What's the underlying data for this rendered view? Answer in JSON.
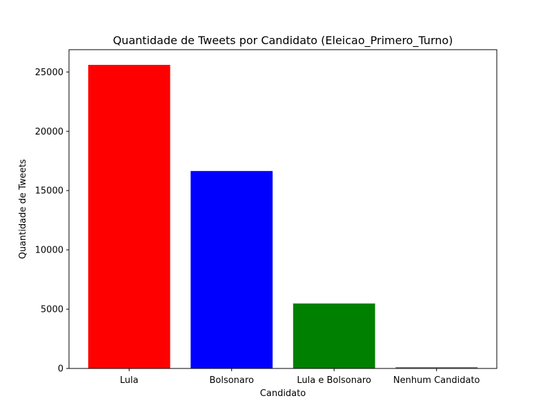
{
  "chart_data": {
    "type": "bar",
    "title": "Quantidade de Tweets por Candidato (Eleicao_Primero_Turno)",
    "xlabel": "Candidato",
    "ylabel": "Quantidade de Tweets",
    "categories": [
      "Lula",
      "Bolsonaro",
      "Lula e Bolsonaro",
      "Nenhum Candidato"
    ],
    "values": [
      25600,
      16650,
      5480,
      120
    ],
    "colors": [
      "#ff0000",
      "#0000ff",
      "#008000",
      "#808080"
    ],
    "ylim": [
      0,
      26880
    ],
    "yticks": [
      0,
      5000,
      10000,
      15000,
      20000,
      25000
    ],
    "grid": false
  }
}
